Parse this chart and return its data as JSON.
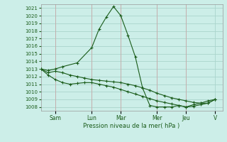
{
  "background_color": "#cceee8",
  "grid_color": "#aad4cc",
  "line_color": "#1a5c1a",
  "marker_color": "#1a5c1a",
  "xlabel": "Pression niveau de la mer( hPa )",
  "ylim": [
    1007.5,
    1021.5
  ],
  "yticks": [
    1008,
    1009,
    1010,
    1011,
    1012,
    1013,
    1014,
    1015,
    1016,
    1017,
    1018,
    1019,
    1020,
    1021
  ],
  "day_labels": [
    "Sam",
    "Lun",
    "Mar",
    "Mer",
    "Jeu",
    "V"
  ],
  "series1_x": [
    0,
    0.5,
    1.0,
    1.5,
    2.5,
    3.5,
    4.0,
    4.5,
    5.0,
    5.5,
    6.0,
    6.5,
    7.0,
    7.5,
    8.0,
    8.5,
    9.0,
    9.5,
    10.0,
    10.5,
    11.0,
    11.5,
    12.0
  ],
  "series1_y": [
    1013.0,
    1012.8,
    1013.0,
    1013.3,
    1013.8,
    1015.8,
    1018.2,
    1019.8,
    1021.2,
    1020.0,
    1017.4,
    1014.6,
    1010.5,
    1008.2,
    1008.0,
    1008.0,
    1008.0,
    1008.2,
    1008.0,
    1008.3,
    1008.5,
    1008.8,
    1009.0
  ],
  "series2_x": [
    0,
    0.5,
    1.0,
    1.5,
    2.0,
    2.5,
    3.0,
    3.5,
    4.0,
    4.5,
    5.0,
    5.5,
    6.0,
    6.5,
    7.0,
    7.5,
    8.0,
    8.5,
    9.0,
    9.5,
    10.0,
    10.5,
    11.0,
    11.5,
    12.0
  ],
  "series2_y": [
    1013.0,
    1012.5,
    1012.7,
    1012.5,
    1012.2,
    1012.0,
    1011.8,
    1011.6,
    1011.5,
    1011.4,
    1011.3,
    1011.2,
    1011.0,
    1010.8,
    1010.5,
    1010.2,
    1009.8,
    1009.5,
    1009.2,
    1009.0,
    1008.8,
    1008.6,
    1008.5,
    1008.5,
    1009.0
  ],
  "series3_x": [
    0,
    0.5,
    1.0,
    1.5,
    2.0,
    2.5,
    3.0,
    3.5,
    4.0,
    4.5,
    5.0,
    5.5,
    6.0,
    6.5,
    7.0,
    7.5,
    8.0,
    8.5,
    9.0,
    9.5,
    10.0,
    10.5,
    11.0,
    11.5,
    12.0
  ],
  "series3_y": [
    1013.0,
    1012.2,
    1011.6,
    1011.2,
    1011.0,
    1011.1,
    1011.2,
    1011.2,
    1011.0,
    1010.8,
    1010.6,
    1010.3,
    1010.0,
    1009.7,
    1009.4,
    1009.1,
    1008.8,
    1008.6,
    1008.4,
    1008.2,
    1008.0,
    1008.1,
    1008.3,
    1008.5,
    1009.0
  ],
  "xlim": [
    0,
    12.5
  ],
  "day_tick_positions": [
    1.0,
    3.5,
    5.5,
    8.0,
    10.0,
    12.0
  ]
}
